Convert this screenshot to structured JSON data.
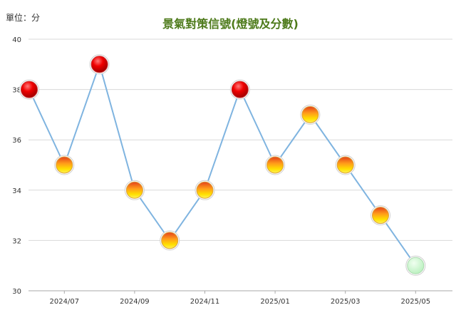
{
  "chart_data": {
    "type": "line",
    "title": "景氣對策信號(燈號及分數)",
    "unit_label": "單位：分",
    "xlabel": "",
    "ylabel": "",
    "ylim": [
      30,
      40
    ],
    "y_ticks": [
      30,
      32,
      34,
      36,
      38,
      40
    ],
    "x": [
      "2024/06",
      "2024/07",
      "2024/08",
      "2024/09",
      "2024/10",
      "2024/11",
      "2024/12",
      "2025/01",
      "2025/02",
      "2025/03",
      "2025/04",
      "2025/05"
    ],
    "x_tick_labels": [
      "2024/07",
      "2024/09",
      "2024/11",
      "2025/01",
      "2025/03",
      "2025/05"
    ],
    "series": [
      {
        "values": [
          38,
          35,
          39,
          34,
          32,
          34,
          38,
          35,
          37,
          35,
          33,
          31
        ],
        "signals": [
          "red",
          "yellow-red",
          "red",
          "yellow-red",
          "yellow-red",
          "yellow-red",
          "red",
          "yellow-red",
          "yellow-red",
          "yellow-red",
          "yellow-red",
          "green"
        ]
      }
    ],
    "grid": true,
    "legend": "none",
    "colors": {
      "line": "#7fb4e0",
      "grid": "#d9d9d9",
      "axis": "#aaaaaa",
      "title": "#4d7a1a",
      "red": "#e00000",
      "yellow_red_top": "#e83a1a",
      "yellow_red_bottom": "#ffe400",
      "green": "#c8f5cc"
    }
  }
}
